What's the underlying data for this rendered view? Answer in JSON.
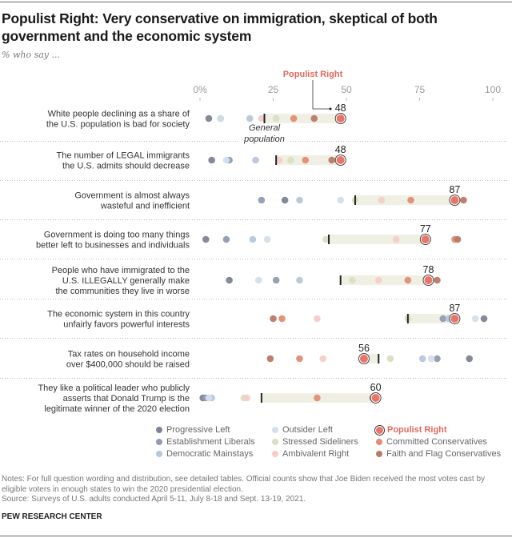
{
  "header": {
    "title": "Populist Right: Very conservative on immigration, skeptical of both government and the economic system",
    "subtitle": "% who say ..."
  },
  "footer": {
    "notes": "Notes: For full question wording and distribution, see detailed tables. Official counts show that Joe Biden received the most votes cast by eligible voters in enough states to win the 2020 presidential election.",
    "source": "Source: Surveys of U.S. adults conducted April 5-11, July 8-18 and Sept. 13-19, 2021.",
    "brand": "PEW RESEARCH CENTER"
  },
  "chart_data": {
    "type": "scatter",
    "subtype": "dot-plot",
    "title": "Populist Right: Very conservative on immigration, skeptical of both government and the economic system",
    "subtitle": "% who say ...",
    "xlim": [
      0,
      100
    ],
    "x_ticks": [
      "0%",
      "25",
      "50",
      "75",
      "100"
    ],
    "x_tick_values": [
      0,
      25,
      50,
      75,
      100
    ],
    "highlight_group": "Populist Right",
    "highlight_label": "Populist Right",
    "general_population_label": "General population",
    "groups": [
      {
        "key": "progressive_left",
        "name": "Progressive Left",
        "color": "#7d8494"
      },
      {
        "key": "establishment_liberals",
        "name": "Establishment Liberals",
        "color": "#919cb2"
      },
      {
        "key": "democratic_mainstays",
        "name": "Democratic Mainstays",
        "color": "#b5c7da"
      },
      {
        "key": "outsider_left",
        "name": "Outsider Left",
        "color": "#d3dfea"
      },
      {
        "key": "stressed_sideliners",
        "name": "Stressed Sideliners",
        "color": "#d9dfc0"
      },
      {
        "key": "ambivalent_right",
        "name": "Ambivalent Right",
        "color": "#f6ccc6"
      },
      {
        "key": "committed_conservatives",
        "name": "Committed Conservatives",
        "color": "#e08d72"
      },
      {
        "key": "faith_flag_conservatives",
        "name": "Faith and Flag Conservatives",
        "color": "#b87a66"
      },
      {
        "key": "populist_right",
        "name": "Populist Right",
        "color": "#e9756a"
      }
    ],
    "legend_order": [
      [
        "Progressive Left",
        "Establishment Liberals",
        "Democratic Mainstays"
      ],
      [
        "Outsider Left",
        "Stressed Sideliners",
        "Ambivalent Right"
      ],
      [
        "Populist Right",
        "Committed Conservatives",
        "Faith and Flag Conservatives"
      ]
    ],
    "rows": [
      {
        "label": [
          "White people declining as a share of",
          "the U.S. population is bad for society"
        ],
        "general_population": 22,
        "values": {
          "progressive_left": 3,
          "establishment_liberals": 7,
          "democratic_mainstays": 17,
          "outsider_left": 7,
          "stressed_sideliners": 26,
          "ambivalent_right": 21,
          "committed_conservatives": 32,
          "faith_flag_conservatives": 39,
          "populist_right": 48
        }
      },
      {
        "label": [
          "The number of LEGAL immigrants",
          "the U.S. admits should decrease"
        ],
        "general_population": 26,
        "values": {
          "progressive_left": 4,
          "establishment_liberals": 10,
          "democratic_mainstays": 19,
          "outsider_left": 9,
          "stressed_sideliners": 31,
          "ambivalent_right": 27,
          "committed_conservatives": 36,
          "faith_flag_conservatives": 45,
          "populist_right": 48
        }
      },
      {
        "label": [
          "Government is almost always",
          "wasteful and inefficient"
        ],
        "general_population": 53,
        "values": {
          "progressive_left": 29,
          "establishment_liberals": 21,
          "democratic_mainstays": 34,
          "outsider_left": 48,
          "stressed_sideliners": 53,
          "ambivalent_right": 62,
          "committed_conservatives": 72,
          "faith_flag_conservatives": 90,
          "populist_right": 87
        }
      },
      {
        "label": [
          "Government is doing too many things",
          "better left to businesses and individuals"
        ],
        "general_population": 44,
        "values": {
          "progressive_left": 2,
          "establishment_liberals": 9,
          "democratic_mainstays": 18,
          "outsider_left": 23,
          "stressed_sideliners": 43,
          "ambivalent_right": 67,
          "committed_conservatives": 87,
          "faith_flag_conservatives": 88,
          "populist_right": 77
        }
      },
      {
        "label": [
          "People who have immigrated to the",
          "U.S. ILLEGALLY generally make",
          "the communities they live in worse"
        ],
        "general_population": 48,
        "values": {
          "progressive_left": 10,
          "establishment_liberals": 26,
          "democratic_mainstays": 34,
          "outsider_left": 20,
          "stressed_sideliners": 52,
          "ambivalent_right": 61,
          "committed_conservatives": 71,
          "faith_flag_conservatives": 81,
          "populist_right": 78
        }
      },
      {
        "label": [
          "The economic system in this country",
          "unfairly favors powerful interests"
        ],
        "general_population": 71,
        "values": {
          "progressive_left": 97,
          "establishment_liberals": 83,
          "democratic_mainstays": 85,
          "outsider_left": 94,
          "stressed_sideliners": 71,
          "ambivalent_right": 40,
          "committed_conservatives": 28,
          "faith_flag_conservatives": 25,
          "populist_right": 87
        }
      },
      {
        "label": [
          "Tax rates on household income",
          "over $400,000 should be raised"
        ],
        "general_population": 61,
        "values": {
          "progressive_left": 92,
          "establishment_liberals": 81,
          "democratic_mainstays": 76,
          "outsider_left": 79,
          "stressed_sideliners": 65,
          "ambivalent_right": 42,
          "committed_conservatives": 34,
          "faith_flag_conservatives": 24,
          "populist_right": 56
        }
      },
      {
        "label": [
          "They like a political leader who publicly",
          "asserts that Donald Trump is the",
          "legitimate winner of the 2020 election"
        ],
        "general_population": 21,
        "values": {
          "progressive_left": 1,
          "establishment_liberals": 2,
          "democratic_mainstays": 4,
          "outsider_left": 3,
          "stressed_sideliners": 15,
          "ambivalent_right": 16,
          "committed_conservatives": 40,
          "faith_flag_conservatives": 59,
          "populist_right": 60
        }
      }
    ]
  }
}
